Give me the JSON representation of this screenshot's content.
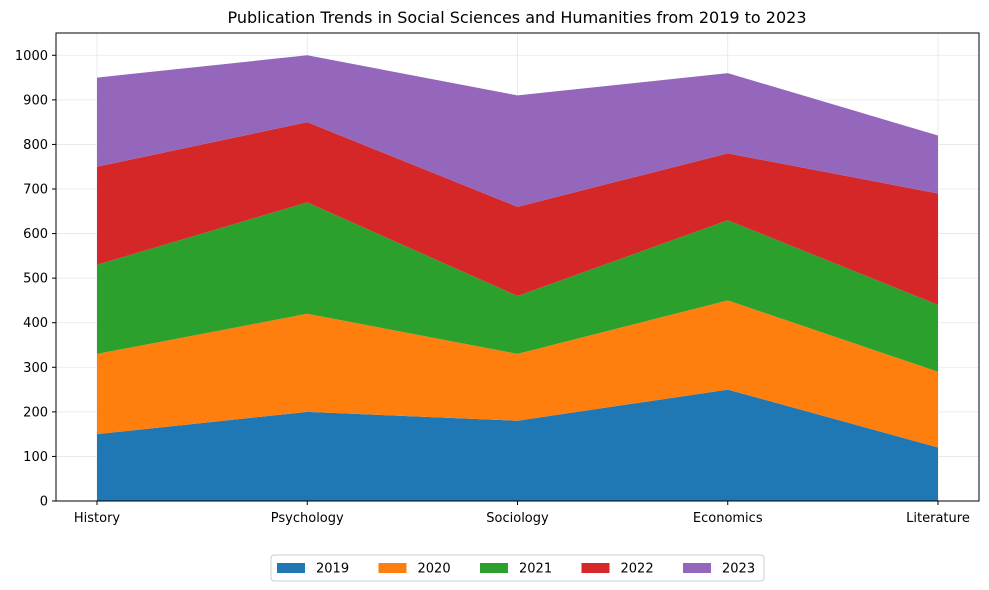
{
  "chart_data": {
    "type": "area",
    "stacked": true,
    "title": "Publication Trends in Social Sciences and Humanities from 2019 to 2023",
    "xlabel": "",
    "ylabel": "",
    "categories": [
      "History",
      "Psychology",
      "Sociology",
      "Economics",
      "Literature"
    ],
    "series": [
      {
        "name": "2019",
        "color": "#1f77b4",
        "values": [
          150,
          200,
          180,
          250,
          120
        ]
      },
      {
        "name": "2020",
        "color": "#ff7f0e",
        "values": [
          180,
          220,
          150,
          200,
          170
        ]
      },
      {
        "name": "2021",
        "color": "#2ca02c",
        "values": [
          200,
          250,
          130,
          180,
          150
        ]
      },
      {
        "name": "2022",
        "color": "#d62728",
        "values": [
          220,
          180,
          200,
          150,
          250
        ]
      },
      {
        "name": "2023",
        "color": "#9467bd",
        "values": [
          200,
          150,
          250,
          180,
          130
        ]
      }
    ],
    "ylim": [
      0,
      1050
    ],
    "yticks": [
      0,
      100,
      200,
      300,
      400,
      500,
      600,
      700,
      800,
      900,
      1000
    ],
    "grid": true,
    "legend_position": "bottom-center"
  }
}
